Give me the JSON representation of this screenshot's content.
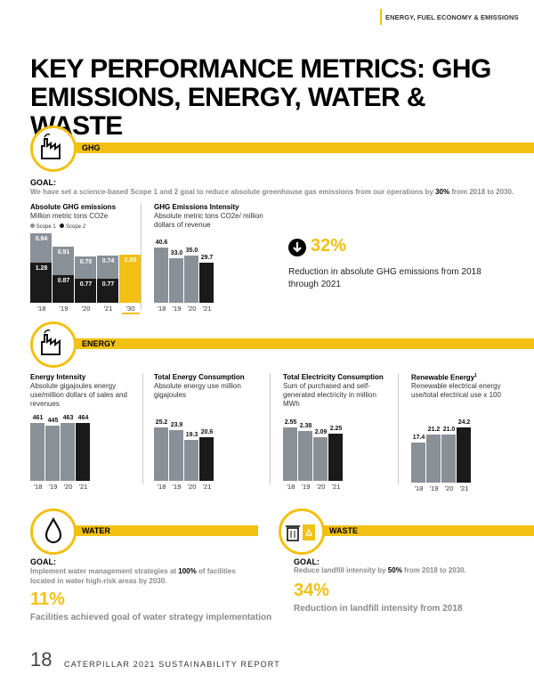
{
  "header": {
    "section_tag": "ENERGY, FUEL ECONOMY & EMISSIONS"
  },
  "page_title": "KEY PERFORMANCE METRICS: GHG EMISSIONS, ENERGY, WATER & WASTE",
  "colors": {
    "accent": "#f2c012",
    "bar_gray": "#8a9097",
    "bar_dark": "#1a1a1a"
  },
  "ghg": {
    "band_label": "GHG",
    "goal_heading": "GOAL:",
    "goal_pre": "We have set a science-based Scope 1 and 2 goal to reduce absolute greenhouse gas emissions from our operations by ",
    "goal_bold": "30%",
    "goal_post": " from 2018 to 2030.",
    "absolute": {
      "title": "Absolute GHG emissions",
      "subtitle": "Million metric tons CO2e",
      "legend_scope1": "Scope 1",
      "legend_scope2": "Scope 2"
    },
    "intensity": {
      "title": "GHG Emissions Intensity",
      "subtitle": "Absolute metric tons CO2e/ million dollars of revenue"
    },
    "highlight_value": "32%",
    "highlight_text": "Reduction in absolute GHG emissions from 2018 through 2021"
  },
  "energy": {
    "band_label": "ENERGY",
    "intensity": {
      "title": "Energy Intensity",
      "subtitle": "Absolute gigajoules energy use/million dollars of sales and revenues"
    },
    "total": {
      "title": "Total Energy Consumption",
      "subtitle": "Absolute energy use million gigajoules"
    },
    "electricity": {
      "title": "Total Electricity Consumption",
      "subtitle": "Sum of purchased and self-generated electricity in million MWh"
    },
    "renewable": {
      "title": "Renewable Energy",
      "title_sup": "1",
      "subtitle": "Renewable electrical energy use/total electrical use x 100"
    }
  },
  "water": {
    "band_label": "WATER",
    "goal_heading": "GOAL:",
    "goal_pre": "Implement water management strategies at ",
    "goal_bold": "100%",
    "goal_post": " of facilities located in water high-risk areas by 2030.",
    "highlight_value": "11%",
    "highlight_text": "Facilities achieved goal of water strategy implementation"
  },
  "waste": {
    "band_label": "WASTE",
    "goal_heading": "GOAL:",
    "goal_pre": "Reduce landfill intensity by ",
    "goal_bold": "50%",
    "goal_post": " from 2018 to 2030.",
    "highlight_value": "34%",
    "highlight_text": "Reduction in landfill intensity from 2018"
  },
  "footer": {
    "page_number": "18",
    "report_title": "CATERPILLAR 2021 SUSTAINABILITY REPORT"
  },
  "chart_data": [
    {
      "type": "bar",
      "id": "abs_ghg",
      "title": "Absolute GHG emissions",
      "ylabel": "Million metric tons CO2e",
      "categories": [
        "'18",
        "'19",
        "'20",
        "'21",
        "'30"
      ],
      "series": [
        {
          "name": "Scope 1",
          "values": [
            1.28,
            0.87,
            0.77,
            0.77,
            null
          ]
        },
        {
          "name": "Scope 2",
          "values": [
            0.94,
            0.91,
            0.7,
            0.74,
            null
          ]
        },
        {
          "name": "2030 Goal",
          "values": [
            null,
            null,
            null,
            null,
            1.55
          ]
        }
      ],
      "labels": {
        "s1": [
          "1.28",
          "0.87",
          "0.77",
          "0.77",
          ""
        ],
        "s2": [
          "0.94",
          "0.91",
          "0.70",
          "0.74",
          ""
        ],
        "goal": [
          "",
          "",
          "",
          "",
          "1.55"
        ]
      },
      "ylim": [
        0,
        2.22
      ]
    },
    {
      "type": "bar",
      "id": "ghg_int",
      "title": "GHG Emissions Intensity",
      "categories": [
        "'18",
        "'19",
        "'20",
        "'21"
      ],
      "values": [
        40.6,
        33.0,
        35.0,
        29.7
      ],
      "value_labels": [
        "40.6",
        "33.0",
        "35.0",
        "29.7"
      ],
      "ylim": [
        0,
        40.6
      ]
    },
    {
      "type": "bar",
      "id": "energy_int",
      "title": "Energy Intensity",
      "categories": [
        "'18",
        "'19",
        "'20",
        "'21"
      ],
      "values": [
        461,
        445,
        463,
        464
      ],
      "value_labels": [
        "461",
        "445",
        "463",
        "464"
      ],
      "ylim": [
        0,
        464
      ]
    },
    {
      "type": "bar",
      "id": "energy_total",
      "title": "Total Energy Consumption",
      "categories": [
        "'18",
        "'19",
        "'20",
        "'21"
      ],
      "values": [
        25.2,
        23.9,
        19.3,
        20.6
      ],
      "value_labels": [
        "25.2",
        "23.9",
        "19.3",
        "20.6"
      ],
      "ylim": [
        0,
        25.2
      ]
    },
    {
      "type": "bar",
      "id": "elec_total",
      "title": "Total Electricity Consumption",
      "categories": [
        "'18",
        "'19",
        "'20",
        "'21"
      ],
      "values": [
        2.55,
        2.38,
        2.09,
        2.25
      ],
      "value_labels": [
        "2.55",
        "2.38",
        "2.09",
        "2.25"
      ],
      "ylim": [
        0,
        2.55
      ]
    },
    {
      "type": "bar",
      "id": "renewable",
      "title": "Renewable Energy",
      "categories": [
        "'18",
        "'19",
        "'20",
        "'21"
      ],
      "values": [
        17.4,
        21.2,
        21.0,
        24.2
      ],
      "value_labels": [
        "17.4",
        "21.2",
        "21.0",
        "24.2"
      ],
      "ylim": [
        0,
        24.2
      ]
    }
  ]
}
